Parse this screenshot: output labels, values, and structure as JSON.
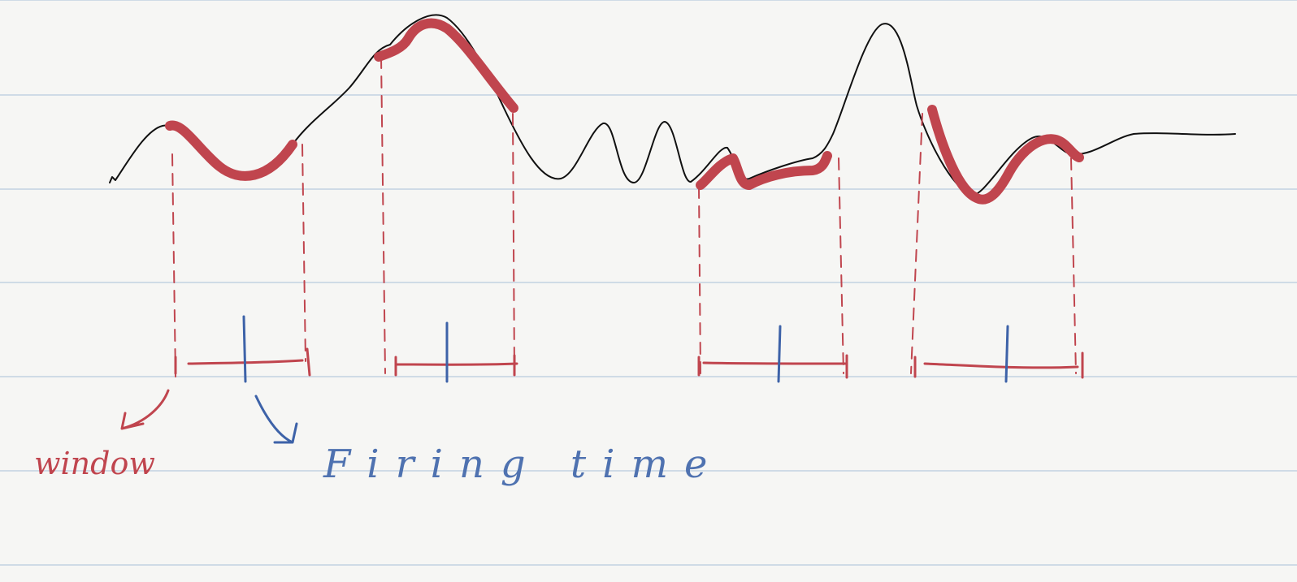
{
  "labels": {
    "window": "window",
    "firing_time": "Firing time"
  },
  "windows": [
    {
      "id": 1
    },
    {
      "id": 2
    },
    {
      "id": 3
    },
    {
      "id": 4
    }
  ],
  "colors": {
    "paper": "#f6f6f4",
    "rule_line": "#cfdbe6",
    "signal": "#111111",
    "window_red": "#c0454e",
    "firing_blue": "#3d62a8",
    "window_label_red": "#c0454e",
    "firing_label_blue": "#4f72b0"
  }
}
